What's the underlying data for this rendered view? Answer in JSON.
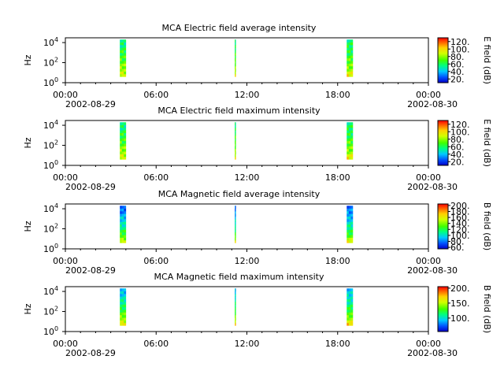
{
  "figure": {
    "date_start": "2002-08-29",
    "date_end": "2002-08-30"
  },
  "chart_data": [
    {
      "type": "heatmap",
      "title": "MCA  Electric field average intensity",
      "ylabel": "Hz",
      "yscale": "log",
      "ylim": [
        1,
        30000
      ],
      "y_ticks": [
        "10",
        "10",
        "10"
      ],
      "y_tick_exps": [
        "0",
        "2",
        "4"
      ],
      "x_ticks": [
        "00:00",
        "06:00",
        "12:00",
        "18:00",
        "00:00"
      ],
      "x_tick_hours": [
        0,
        6,
        12,
        18,
        24
      ],
      "xlim_hours": [
        0,
        24
      ],
      "colorbar_label": "E field (dB)",
      "colorbar_range": [
        10,
        130
      ],
      "colorbar_ticks": [
        "20.",
        "40.",
        "60.",
        "80.",
        "100.",
        "120."
      ],
      "colorbar_tick_values": [
        20,
        40,
        60,
        80,
        100,
        120
      ],
      "intervals_hours": [
        [
          3.6,
          4.0
        ],
        [
          11.2,
          11.25
        ],
        [
          18.6,
          19.0
        ]
      ],
      "freq_range_hz": [
        4,
        20000
      ],
      "level_low_db": 55,
      "level_high_db": 95
    },
    {
      "type": "heatmap",
      "title": "MCA  Electric field maximum intensity",
      "ylabel": "Hz",
      "yscale": "log",
      "ylim": [
        1,
        30000
      ],
      "y_ticks": [
        "10",
        "10",
        "10"
      ],
      "y_tick_exps": [
        "0",
        "2",
        "4"
      ],
      "x_ticks": [
        "00:00",
        "06:00",
        "12:00",
        "18:00",
        "00:00"
      ],
      "x_tick_hours": [
        0,
        6,
        12,
        18,
        24
      ],
      "xlim_hours": [
        0,
        24
      ],
      "colorbar_label": "E field (dB)",
      "colorbar_range": [
        10,
        130
      ],
      "colorbar_ticks": [
        "20.",
        "40.",
        "60.",
        "80.",
        "100.",
        "120."
      ],
      "colorbar_tick_values": [
        20,
        40,
        60,
        80,
        100,
        120
      ],
      "intervals_hours": [
        [
          3.6,
          4.0
        ],
        [
          11.2,
          11.25
        ],
        [
          18.6,
          19.0
        ]
      ],
      "freq_range_hz": [
        4,
        20000
      ],
      "level_low_db": 55,
      "level_high_db": 95
    },
    {
      "type": "heatmap",
      "title": "MCA  Magnetic field average intensity",
      "ylabel": "Hz",
      "yscale": "log",
      "ylim": [
        1,
        30000
      ],
      "y_ticks": [
        "10",
        "10",
        "10"
      ],
      "y_tick_exps": [
        "0",
        "2",
        "4"
      ],
      "x_ticks": [
        "00:00",
        "06:00",
        "12:00",
        "18:00",
        "00:00"
      ],
      "x_tick_hours": [
        0,
        6,
        12,
        18,
        24
      ],
      "xlim_hours": [
        0,
        24
      ],
      "colorbar_label": "B field (dB)",
      "colorbar_range": [
        55,
        205
      ],
      "colorbar_ticks": [
        "60.",
        "80.",
        "100.",
        "120.",
        "140.",
        "160.",
        "180.",
        "200."
      ],
      "colorbar_tick_values": [
        60,
        80,
        100,
        120,
        140,
        160,
        180,
        200
      ],
      "intervals_hours": [
        [
          3.6,
          4.0
        ],
        [
          11.2,
          11.25
        ],
        [
          18.6,
          19.0
        ]
      ],
      "freq_range_hz": [
        4,
        20000
      ],
      "level_low_db": 75,
      "level_high_db": 160
    },
    {
      "type": "heatmap",
      "title": "MCA  Magnetic field maximum intensity",
      "ylabel": "Hz",
      "yscale": "log",
      "ylim": [
        1,
        30000
      ],
      "y_ticks": [
        "10",
        "10",
        "10"
      ],
      "y_tick_exps": [
        "0",
        "2",
        "4"
      ],
      "x_ticks": [
        "00:00",
        "06:00",
        "12:00",
        "18:00",
        "00:00"
      ],
      "x_tick_hours": [
        0,
        6,
        12,
        18,
        24
      ],
      "xlim_hours": [
        0,
        24
      ],
      "colorbar_label": "B field (dB)",
      "colorbar_range": [
        55,
        205
      ],
      "colorbar_ticks": [
        "100.",
        "150.",
        "200."
      ],
      "colorbar_tick_values": [
        100,
        150,
        200
      ],
      "intervals_hours": [
        [
          3.6,
          4.0
        ],
        [
          11.2,
          11.25
        ],
        [
          18.6,
          19.0
        ]
      ],
      "freq_range_hz": [
        4,
        20000
      ],
      "level_low_db": 90,
      "level_high_db": 170
    }
  ]
}
